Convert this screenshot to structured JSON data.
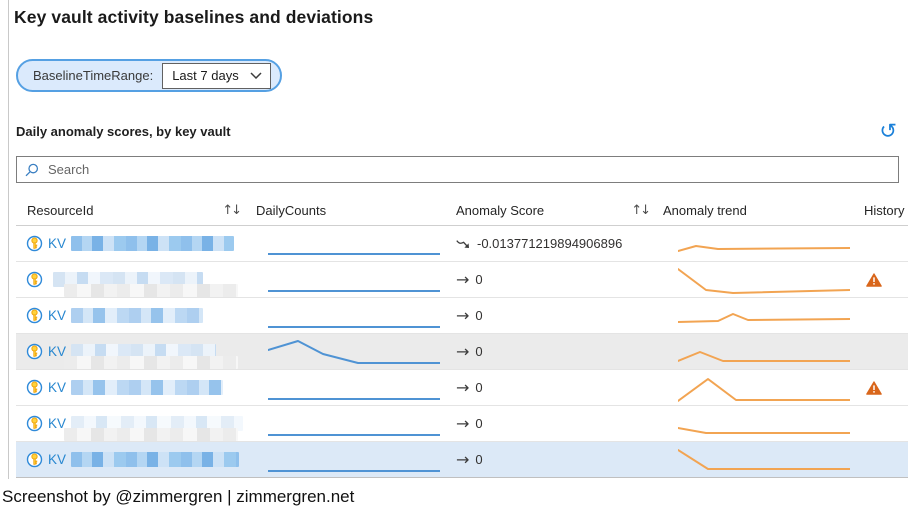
{
  "header": {
    "title": "Key vault activity baselines and deviations"
  },
  "params": {
    "label": "BaselineTimeRange:",
    "value": "Last 7 days"
  },
  "section": {
    "title": "Daily anomaly scores, by key vault"
  },
  "search": {
    "placeholder": "Search"
  },
  "table": {
    "columns": [
      {
        "label": "ResourceId",
        "sortable": true
      },
      {
        "label": "DailyCounts",
        "sortable": false
      },
      {
        "label": "Anomaly Score",
        "sortable": true
      },
      {
        "label": "Anomaly trend",
        "sortable": false
      },
      {
        "label": "History",
        "sortable": false
      }
    ],
    "rows": [
      {
        "resource_prefix": "KV",
        "redaction": "blue-strong",
        "redaction_width": 163,
        "sub_strip": false,
        "highlight": "none",
        "daily_spark": [
          [
            0,
            25
          ],
          [
            172,
            25
          ]
        ],
        "score": "-0.013771219894906896",
        "score_icon": "trend-down",
        "trend_spark": [
          [
            0,
            22
          ],
          [
            18,
            17
          ],
          [
            40,
            20
          ],
          [
            172,
            19
          ]
        ],
        "warning": false
      },
      {
        "resource_prefix": "",
        "redaction": "blue-light",
        "redaction_width": 150,
        "sub_strip": true,
        "highlight": "none",
        "daily_spark": [
          [
            0,
            26
          ],
          [
            172,
            26
          ]
        ],
        "score": "0",
        "score_icon": "steady",
        "trend_spark": [
          [
            0,
            4
          ],
          [
            28,
            25
          ],
          [
            55,
            28
          ],
          [
            172,
            25
          ]
        ],
        "warning": true
      },
      {
        "resource_prefix": "KV",
        "redaction": "blue-medium",
        "redaction_width": 132,
        "sub_strip": false,
        "highlight": "none",
        "daily_spark": [
          [
            0,
            26
          ],
          [
            172,
            26
          ]
        ],
        "score": "0",
        "score_icon": "steady",
        "trend_spark": [
          [
            0,
            21
          ],
          [
            40,
            20
          ],
          [
            55,
            13
          ],
          [
            70,
            19
          ],
          [
            172,
            18
          ]
        ],
        "warning": false
      },
      {
        "resource_prefix": "KV",
        "redaction": "blue-light",
        "redaction_width": 145,
        "sub_strip": true,
        "highlight": "gray",
        "daily_spark": [
          [
            0,
            13
          ],
          [
            30,
            4
          ],
          [
            55,
            17
          ],
          [
            90,
            26
          ],
          [
            172,
            26
          ]
        ],
        "score": "0",
        "score_icon": "steady",
        "trend_spark": [
          [
            0,
            24
          ],
          [
            22,
            15
          ],
          [
            45,
            24
          ],
          [
            172,
            24
          ]
        ],
        "warning": false
      },
      {
        "resource_prefix": "KV",
        "redaction": "blue-medium",
        "redaction_width": 152,
        "sub_strip": false,
        "highlight": "none",
        "daily_spark": [
          [
            0,
            26
          ],
          [
            172,
            26
          ]
        ],
        "score": "0",
        "score_icon": "steady",
        "trend_spark": [
          [
            0,
            28
          ],
          [
            30,
            6
          ],
          [
            58,
            27
          ],
          [
            172,
            27
          ]
        ],
        "warning": true
      },
      {
        "resource_prefix": "KV",
        "redaction": "blue-xlight",
        "redaction_width": 172,
        "sub_strip": true,
        "highlight": "none",
        "daily_spark": [
          [
            0,
            26
          ],
          [
            172,
            26
          ]
        ],
        "score": "0",
        "score_icon": "steady",
        "trend_spark": [
          [
            0,
            19
          ],
          [
            28,
            24
          ],
          [
            172,
            24
          ]
        ],
        "warning": false
      },
      {
        "resource_prefix": "KV",
        "redaction": "blue-strong",
        "redaction_width": 168,
        "sub_strip": false,
        "highlight": "blue",
        "daily_spark": [
          [
            0,
            26
          ],
          [
            172,
            26
          ]
        ],
        "score": "0",
        "score_icon": "steady",
        "trend_spark": [
          [
            0,
            5
          ],
          [
            30,
            24
          ],
          [
            172,
            24
          ]
        ],
        "warning": false
      }
    ]
  },
  "footer": {
    "caption": "Screenshot by @zimmergren | zimmergren.net"
  },
  "colors": {
    "accent_blue": "#1a80d9",
    "pill_border": "#55a0e3",
    "pill_bg": "#dbeafc",
    "kv_link": "#2787d0",
    "daily_spark": "#4f93d4",
    "trend_spark": "#f2a452",
    "warning": "#d9661b",
    "row_alt_bg": "#ebebeb",
    "row_selected_bg": "#dce9f7"
  }
}
